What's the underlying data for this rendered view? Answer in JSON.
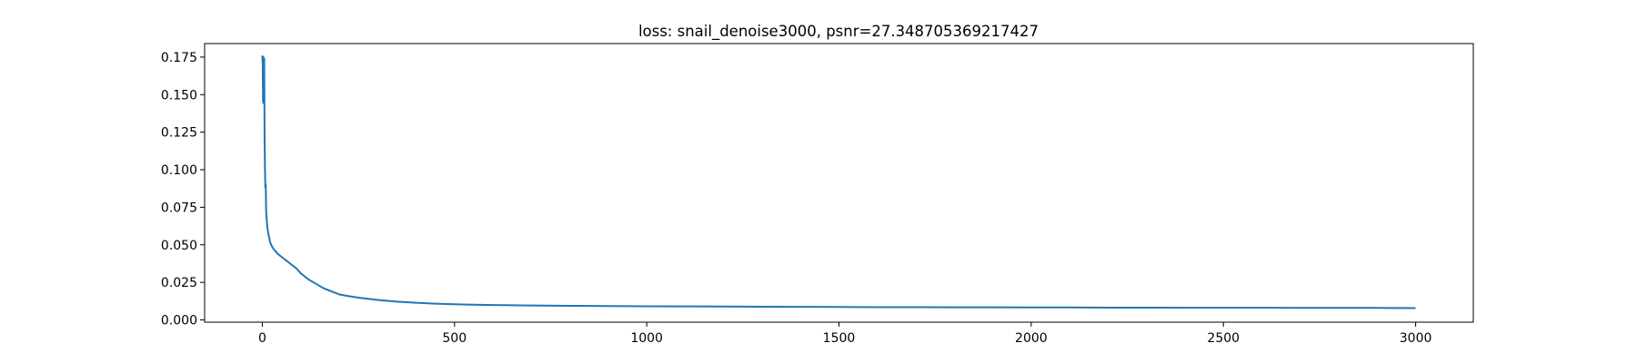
{
  "chart_data": {
    "type": "line",
    "title": "loss: snail_denoise3000, psnr=27.348705369217427",
    "xlabel": "",
    "ylabel": "",
    "xlim": [
      -150,
      3150
    ],
    "ylim": [
      -0.0015,
      0.184
    ],
    "xticks": [
      0,
      500,
      1000,
      1500,
      2000,
      2500,
      3000
    ],
    "xtick_labels": [
      "0",
      "500",
      "1000",
      "1500",
      "2000",
      "2500",
      "3000"
    ],
    "yticks": [
      0.0,
      0.025,
      0.05,
      0.075,
      0.1,
      0.125,
      0.15,
      0.175
    ],
    "ytick_labels": [
      "0.000",
      "0.025",
      "0.050",
      "0.075",
      "0.100",
      "0.125",
      "0.150",
      "0.175"
    ],
    "grid": false,
    "legend": "none",
    "series": [
      {
        "color": "#1f77b4",
        "x": [
          0,
          1,
          2,
          3,
          4,
          5,
          6,
          7,
          8,
          9,
          10,
          12,
          14,
          16,
          18,
          20,
          25,
          30,
          40,
          50,
          60,
          70,
          80,
          90,
          100,
          120,
          140,
          160,
          180,
          200,
          220,
          250,
          300,
          350,
          400,
          450,
          500,
          550,
          600,
          700,
          800,
          900,
          1000,
          1100,
          1200,
          1300,
          1400,
          1500,
          1600,
          1700,
          1800,
          1900,
          2000,
          2100,
          2200,
          2300,
          2400,
          2500,
          2600,
          2700,
          2800,
          2900,
          3000
        ],
        "y": [
          0.176,
          0.172,
          0.145,
          0.175,
          0.144,
          0.174,
          0.12,
          0.1,
          0.088,
          0.09,
          0.072,
          0.065,
          0.06,
          0.057,
          0.055,
          0.052,
          0.049,
          0.047,
          0.044,
          0.042,
          0.04,
          0.038,
          0.036,
          0.034,
          0.031,
          0.027,
          0.024,
          0.021,
          0.019,
          0.017,
          0.016,
          0.0148,
          0.0133,
          0.0122,
          0.0114,
          0.0108,
          0.0104,
          0.0101,
          0.0099,
          0.0096,
          0.0094,
          0.0092,
          0.0091,
          0.009,
          0.0089,
          0.0088,
          0.0087,
          0.0086,
          0.0085,
          0.0085,
          0.0084,
          0.0084,
          0.0083,
          0.0083,
          0.0082,
          0.0082,
          0.0081,
          0.0081,
          0.0081,
          0.008,
          0.008,
          0.008,
          0.0079
        ]
      }
    ]
  }
}
